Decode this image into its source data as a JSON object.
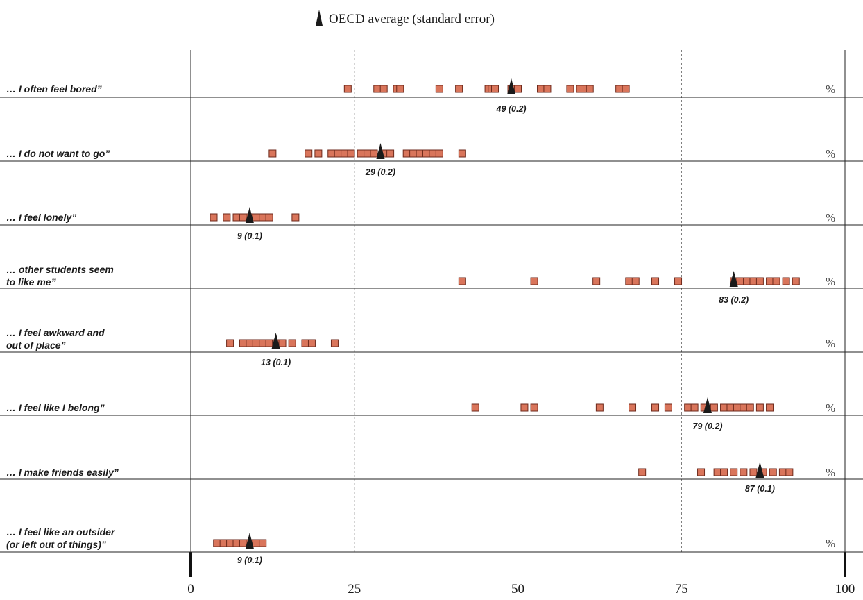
{
  "legend": {
    "label": "OECD average (standard error)",
    "color": "#1a1a1a"
  },
  "unit_label": "%",
  "colors": {
    "marker_fill": "#d9755b",
    "marker_stroke": "#6e2a1c",
    "avg_marker": "#1a1a1a",
    "grid": "#555555"
  },
  "chart_data": {
    "type": "scatter",
    "xlim": [
      0,
      100
    ],
    "x_ticks": [
      "0",
      "25",
      "50",
      "75",
      "100"
    ],
    "x_tick_values": [
      0,
      25,
      50,
      75,
      100
    ],
    "gridlines": [
      25,
      50,
      75
    ],
    "rows": [
      {
        "lines": [
          "… I often feel bored”"
        ],
        "avg": 49,
        "avg_label": "49 (0.2)",
        "values": [
          24,
          28.5,
          29.5,
          31.5,
          32,
          38,
          41,
          45.5,
          46,
          46.5,
          49,
          50,
          53.5,
          54.5,
          58,
          59.5,
          60.5,
          61,
          65.5,
          66.5
        ]
      },
      {
        "lines": [
          "… I do not want to go”"
        ],
        "avg": 29,
        "avg_label": "29 (0.2)",
        "values": [
          12.5,
          18,
          19.5,
          21.5,
          22.5,
          23.5,
          24.5,
          26,
          27,
          28,
          29.5,
          30.5,
          33,
          34,
          35,
          36,
          37,
          38,
          41.5
        ]
      },
      {
        "lines": [
          "… I feel lonely”"
        ],
        "avg": 9,
        "avg_label": "9 (0.1)",
        "values": [
          3.5,
          5.5,
          7,
          8,
          9,
          10,
          11,
          12,
          16
        ]
      },
      {
        "lines": [
          "… other students seem",
          "to like me”"
        ],
        "avg": 83,
        "avg_label": "83 (0.2)",
        "values": [
          41.5,
          52.5,
          62,
          67,
          68,
          71,
          74.5,
          83,
          84,
          85,
          86,
          87,
          88.5,
          89.5,
          91,
          92.5
        ]
      },
      {
        "lines": [
          "… I feel awkward and",
          "out of place”"
        ],
        "avg": 13,
        "avg_label": "13 (0.1)",
        "values": [
          6,
          8,
          9,
          10,
          11,
          12,
          13,
          14,
          15.5,
          17.5,
          18.5,
          22
        ]
      },
      {
        "lines": [
          "… I feel like I belong”"
        ],
        "avg": 79,
        "avg_label": "79 (0.2)",
        "values": [
          43.5,
          51,
          52.5,
          62.5,
          67.5,
          71,
          73,
          76,
          77,
          78.5,
          80,
          81.5,
          82.5,
          83.5,
          84.5,
          85.5,
          87,
          88.5
        ]
      },
      {
        "lines": [
          "… I make friends easily”"
        ],
        "avg": 87,
        "avg_label": "87 (0.1)",
        "values": [
          69,
          78,
          80.5,
          81.5,
          83,
          84.5,
          86,
          87.5,
          89,
          90.5,
          91.5
        ]
      },
      {
        "lines": [
          "… I feel like an outsider",
          "(or left out of things)”"
        ],
        "avg": 9,
        "avg_label": "9 (0.1)",
        "values": [
          4,
          5,
          6,
          7,
          8,
          9,
          10,
          11
        ]
      }
    ]
  }
}
